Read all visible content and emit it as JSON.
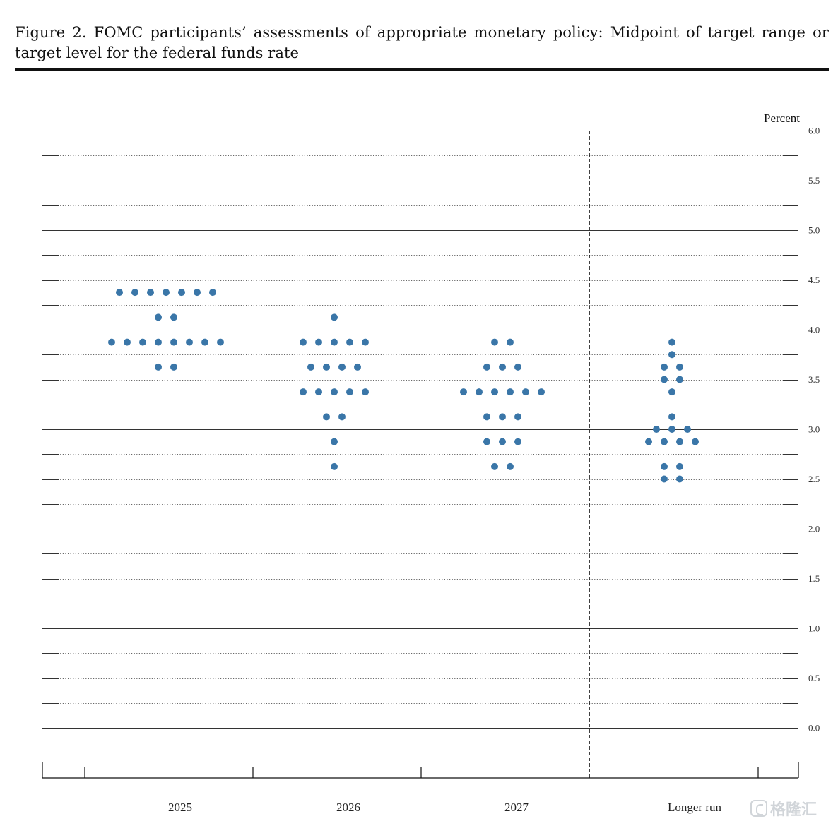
{
  "figure": {
    "title": "Figure 2.  FOMC participants’ assessments of appropriate monetary policy:  Midpoint of target range or target level for the federal funds rate"
  },
  "watermark": {
    "text": "格隆汇",
    "icon": "gelonghui-logo-icon"
  },
  "chart_data": {
    "type": "scatter",
    "subtype": "dot-plot",
    "title": "Figure 2.  FOMC participants’ assessments of appropriate monetary policy:  Midpoint of target range or target level for the federal funds rate",
    "ylabel": "Percent",
    "xlabel": "",
    "ylim": [
      0.0,
      6.0
    ],
    "y_ticks": [
      "0.0",
      "0.5",
      "1.0",
      "1.5",
      "2.0",
      "2.5",
      "3.0",
      "3.5",
      "4.0",
      "4.5",
      "5.0",
      "5.5",
      "6.0"
    ],
    "grid": true,
    "dot_color": "#3a76a8",
    "categories": [
      "2025",
      "2026",
      "2027",
      "Longer run"
    ],
    "series": [
      {
        "category": "2025",
        "points": [
          {
            "y": 4.375,
            "count": 7
          },
          {
            "y": 4.125,
            "count": 2
          },
          {
            "y": 3.875,
            "count": 8
          },
          {
            "y": 3.625,
            "count": 2
          }
        ]
      },
      {
        "category": "2026",
        "points": [
          {
            "y": 4.125,
            "count": 1
          },
          {
            "y": 3.875,
            "count": 5
          },
          {
            "y": 3.625,
            "count": 4
          },
          {
            "y": 3.375,
            "count": 5
          },
          {
            "y": 3.125,
            "count": 2
          },
          {
            "y": 2.875,
            "count": 1
          },
          {
            "y": 2.625,
            "count": 1
          }
        ]
      },
      {
        "category": "2027",
        "points": [
          {
            "y": 3.875,
            "count": 2
          },
          {
            "y": 3.625,
            "count": 3
          },
          {
            "y": 3.375,
            "count": 6
          },
          {
            "y": 3.125,
            "count": 3
          },
          {
            "y": 2.875,
            "count": 3
          },
          {
            "y": 2.625,
            "count": 2
          }
        ]
      },
      {
        "category": "Longer run",
        "points": [
          {
            "y": 3.875,
            "count": 1
          },
          {
            "y": 3.75,
            "count": 1
          },
          {
            "y": 3.625,
            "count": 2
          },
          {
            "y": 3.5,
            "count": 2
          },
          {
            "y": 3.375,
            "count": 1
          },
          {
            "y": 3.125,
            "count": 1
          },
          {
            "y": 3.0,
            "count": 3
          },
          {
            "y": 2.875,
            "count": 4
          },
          {
            "y": 2.625,
            "count": 2
          },
          {
            "y": 2.5,
            "count": 2
          }
        ]
      }
    ]
  }
}
